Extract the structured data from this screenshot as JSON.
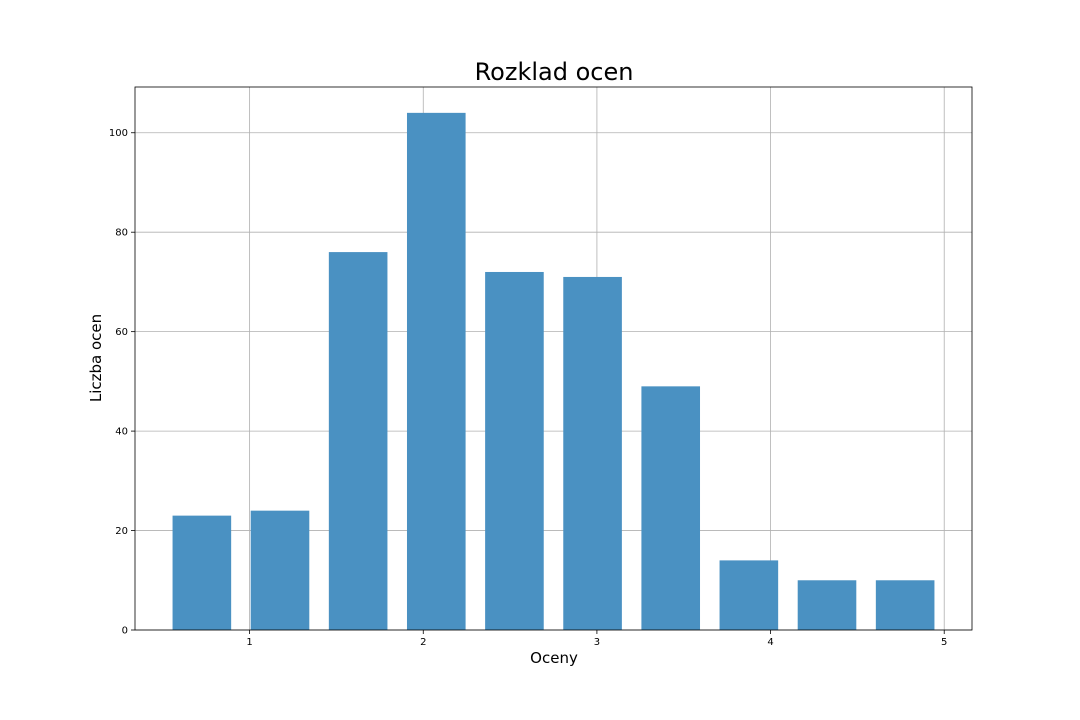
{
  "chart_data": {
    "type": "bar",
    "title": "Rozklad ocen",
    "xlabel": "Oceny",
    "ylabel": "Liczba ocen",
    "bins": [
      {
        "start": 0.5,
        "end": 0.95,
        "value": 23
      },
      {
        "start": 0.95,
        "end": 1.4,
        "value": 24
      },
      {
        "start": 1.4,
        "end": 1.85,
        "value": 76
      },
      {
        "start": 1.85,
        "end": 2.3,
        "value": 104
      },
      {
        "start": 2.3,
        "end": 2.75,
        "value": 72
      },
      {
        "start": 2.75,
        "end": 3.2,
        "value": 71
      },
      {
        "start": 3.2,
        "end": 3.65,
        "value": 49
      },
      {
        "start": 3.65,
        "end": 4.1,
        "value": 14
      },
      {
        "start": 4.1,
        "end": 4.55,
        "value": 10
      },
      {
        "start": 4.55,
        "end": 5.0,
        "value": 10
      }
    ],
    "bar_width_fraction": 0.75,
    "xlim": [
      0.34,
      5.16
    ],
    "ylim": [
      0,
      109.2
    ],
    "xticks": [
      1,
      2,
      3,
      4,
      5
    ],
    "yticks": [
      0,
      20,
      40,
      60,
      80,
      100
    ],
    "grid": true,
    "bar_color": "#4a91c2"
  }
}
